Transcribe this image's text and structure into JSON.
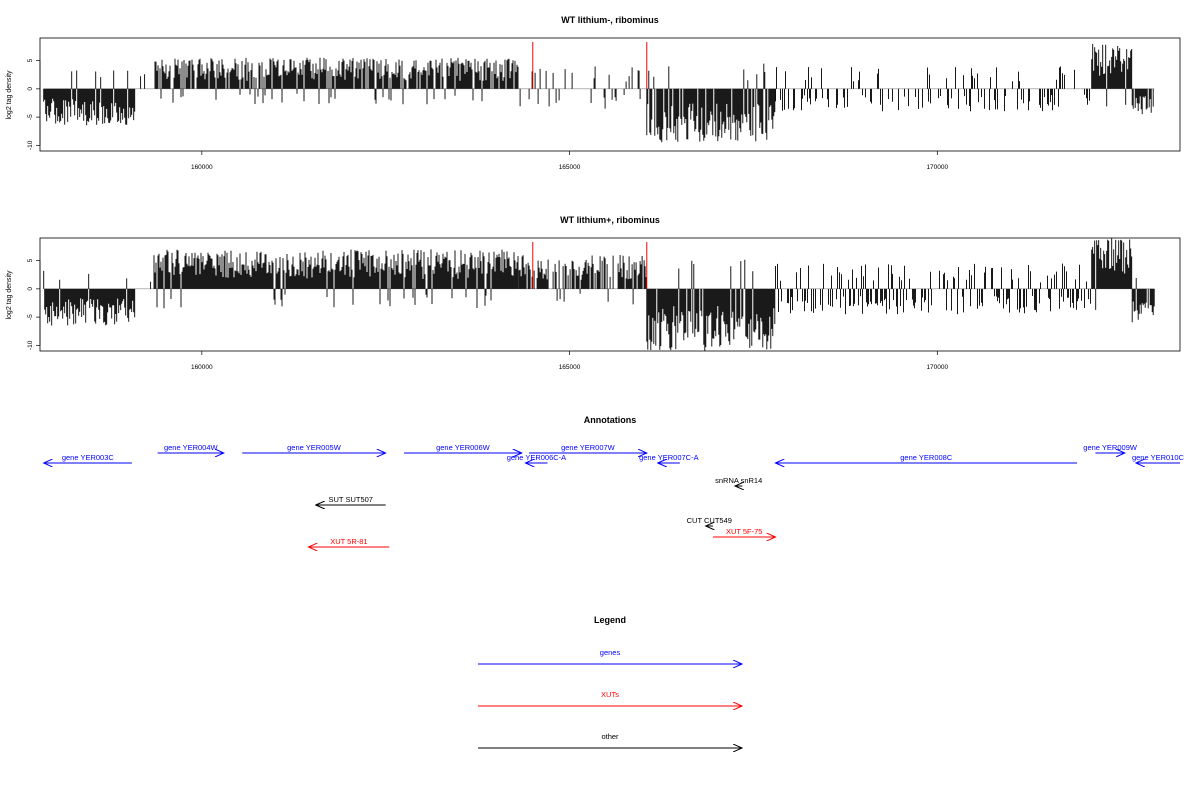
{
  "colors": {
    "gene": "#0000ff",
    "xut": "#ff0000",
    "other": "#000000",
    "marker": "#ff0000",
    "bar": "#000000"
  },
  "chart_data": [
    {
      "type": "bar",
      "title": "WT lithium-, ribominus",
      "ylabel": "log2 tag density",
      "xlim": [
        157800,
        173300
      ],
      "ylim": [
        -11,
        9
      ],
      "xticks": [
        160000,
        165000,
        170000
      ],
      "yticks": [
        5,
        0,
        -5,
        -10
      ],
      "markers": [
        164500,
        166050
      ],
      "segments": [
        {
          "x0": 157850,
          "x1": 159100,
          "kind": "neg",
          "dense": 1.0,
          "amp": 6.5
        },
        {
          "x0": 159100,
          "x1": 159350,
          "kind": "sparse",
          "dense": 0.15,
          "amp": 3
        },
        {
          "x0": 159350,
          "x1": 164300,
          "kind": "pos",
          "dense": 0.9,
          "amp": 5.5
        },
        {
          "x0": 164300,
          "x1": 166050,
          "kind": "sparse",
          "dense": 0.25,
          "amp": 4
        },
        {
          "x0": 166050,
          "x1": 167800,
          "kind": "neg",
          "dense": 0.85,
          "amp": 9.5
        },
        {
          "x0": 167800,
          "x1": 172100,
          "kind": "mixed",
          "dense": 0.35,
          "amp": 4
        },
        {
          "x0": 172100,
          "x1": 172650,
          "kind": "pos",
          "dense": 1.0,
          "amp": 8
        },
        {
          "x0": 172650,
          "x1": 172950,
          "kind": "neg",
          "dense": 0.9,
          "amp": 4.5
        }
      ]
    },
    {
      "type": "bar",
      "title": "WT lithium+, ribominus",
      "ylabel": "log2 tag density",
      "xlim": [
        157800,
        173300
      ],
      "ylim": [
        -11,
        9
      ],
      "xticks": [
        160000,
        165000,
        170000
      ],
      "yticks": [
        5,
        0,
        -5,
        -10
      ],
      "markers": [
        164500,
        166050
      ],
      "segments": [
        {
          "x0": 157850,
          "x1": 159100,
          "kind": "neg",
          "dense": 1.0,
          "amp": 6.5
        },
        {
          "x0": 159100,
          "x1": 159350,
          "kind": "sparse",
          "dense": 0.2,
          "amp": 3
        },
        {
          "x0": 159350,
          "x1": 164300,
          "kind": "pos",
          "dense": 1.0,
          "amp": 7
        },
        {
          "x0": 164300,
          "x1": 166050,
          "kind": "pos",
          "dense": 0.7,
          "amp": 6
        },
        {
          "x0": 166050,
          "x1": 167800,
          "kind": "neg",
          "dense": 0.9,
          "amp": 11
        },
        {
          "x0": 167800,
          "x1": 172100,
          "kind": "mixed",
          "dense": 0.5,
          "amp": 4.5
        },
        {
          "x0": 172100,
          "x1": 172650,
          "kind": "pos",
          "dense": 1.0,
          "amp": 9
        },
        {
          "x0": 172650,
          "x1": 172950,
          "kind": "neg",
          "dense": 0.9,
          "amp": 6
        }
      ]
    }
  ],
  "annotations": {
    "title": "Annotations",
    "features": [
      {
        "label": "gene YER003C",
        "type": "gene",
        "start": 159050,
        "end": 157850,
        "row": 2
      },
      {
        "label": "gene YER004W",
        "type": "gene",
        "start": 159400,
        "end": 160300,
        "row": 1
      },
      {
        "label": "gene YER005W",
        "type": "gene",
        "start": 160550,
        "end": 162500,
        "row": 1
      },
      {
        "label": "gene YER006W",
        "type": "gene",
        "start": 162750,
        "end": 164350,
        "row": 1
      },
      {
        "label": "gene YER006C-A",
        "type": "gene",
        "start": 164700,
        "end": 164400,
        "row": 2
      },
      {
        "label": "gene YER007W",
        "type": "gene",
        "start": 164450,
        "end": 166050,
        "row": 1
      },
      {
        "label": "gene YER007C-A",
        "type": "gene",
        "start": 166500,
        "end": 166200,
        "row": 2
      },
      {
        "label": "gene YER008C",
        "type": "gene",
        "start": 171900,
        "end": 167800,
        "row": 2
      },
      {
        "label": "gene YER009W",
        "type": "gene",
        "start": 172150,
        "end": 172550,
        "row": 1
      },
      {
        "label": "gene YER010C",
        "type": "gene",
        "start": 173300,
        "end": 172700,
        "row": 2
      },
      {
        "label": "snRNA snR14",
        "type": "other",
        "start": 167350,
        "end": 167250,
        "row": 3
      },
      {
        "label": "SUT SUT507",
        "type": "other",
        "start": 162500,
        "end": 161550,
        "row": 4
      },
      {
        "label": "CUT CUT549",
        "type": "other",
        "start": 166950,
        "end": 166850,
        "row": 5
      },
      {
        "label": "XUT 5F-75",
        "type": "xut",
        "start": 166950,
        "end": 167800,
        "row": 6
      },
      {
        "label": "XUT 5R-81",
        "type": "xut",
        "start": 162550,
        "end": 161450,
        "row": 7
      }
    ]
  },
  "legend": {
    "title": "Legend",
    "items": [
      {
        "label": "genes",
        "type": "gene"
      },
      {
        "label": "XUTs",
        "type": "xut"
      },
      {
        "label": "other",
        "type": "other"
      }
    ]
  }
}
